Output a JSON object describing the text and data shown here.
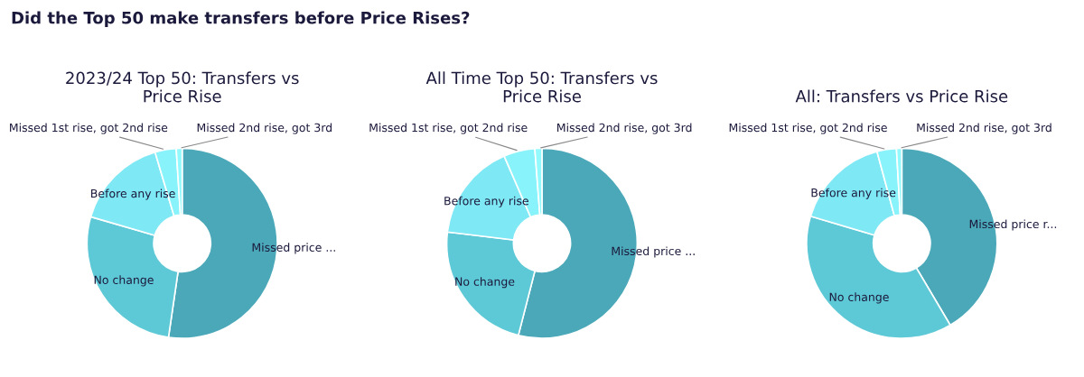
{
  "chart_data": [
    {
      "type": "donut",
      "title": "2023/24 Top 50: Transfers vs\nPrice Rise",
      "annotations": [
        "Did the Top 50 make transfers before Price Rises?"
      ],
      "categories": [
        "Missed price ...",
        "No change",
        "Before any rise",
        "Missed 1st rise, got 2nd rise",
        "Missed 2nd rise, got 3rd"
      ],
      "values": [
        52.3,
        27.2,
        15.9,
        3.6,
        1.0
      ],
      "colors": [
        "#4aa8b8",
        "#5ec9d6",
        "#7ee8f5",
        "#88f3fa",
        "#92f9fd"
      ]
    },
    {
      "type": "donut",
      "title": "All Time Top 50: Transfers vs\nPrice Rise",
      "categories": [
        "Missed price ...",
        "No change",
        "Before any rise",
        "Missed 1st rise, got 2nd rise",
        "Missed 2nd rise, got 3rd"
      ],
      "values": [
        54.0,
        22.9,
        16.6,
        5.3,
        1.2
      ],
      "colors": [
        "#4aa8b8",
        "#5ec9d6",
        "#7ee8f5",
        "#88f3fa",
        "#92f9fd"
      ]
    },
    {
      "type": "donut",
      "title": "All: Transfers vs Price Rise",
      "categories": [
        "Missed price r...",
        "No change",
        "Before any rise",
        "Missed 1st rise, got 2nd rise",
        "Missed 2nd rise, got 3rd"
      ],
      "values": [
        41.5,
        38.1,
        16.2,
        3.3,
        0.9
      ],
      "colors": [
        "#4aa8b8",
        "#5ec9d6",
        "#7ee8f5",
        "#88f3fa",
        "#92f9fd"
      ]
    }
  ]
}
